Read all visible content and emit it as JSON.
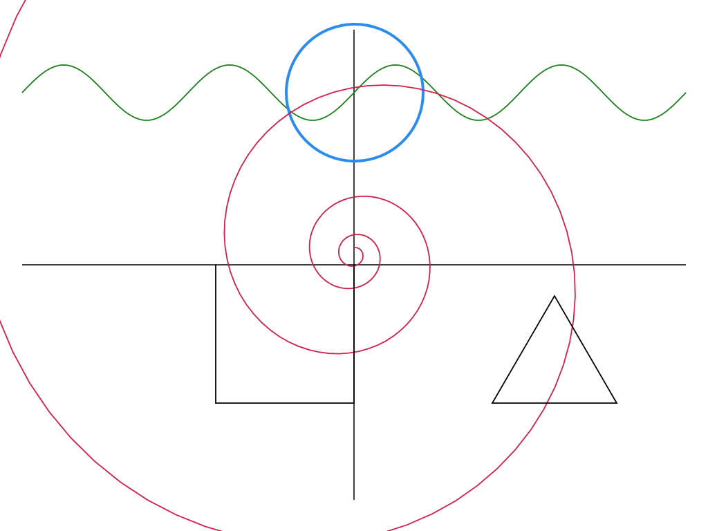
{
  "colors": {
    "background": "#ffffff",
    "axes": "#000000",
    "sine_wave": "#1a7f1a",
    "circle": "#2b8cee",
    "spiral": "#d21f4a",
    "square": "#000000",
    "triangle": "#000000"
  },
  "shapes": [
    {
      "name": "axes",
      "kind": "cross"
    },
    {
      "name": "sine-wave",
      "kind": "sine"
    },
    {
      "name": "circle",
      "kind": "circle"
    },
    {
      "name": "spiral",
      "kind": "spiral"
    },
    {
      "name": "square",
      "kind": "square"
    },
    {
      "name": "triangle",
      "kind": "triangle"
    }
  ]
}
